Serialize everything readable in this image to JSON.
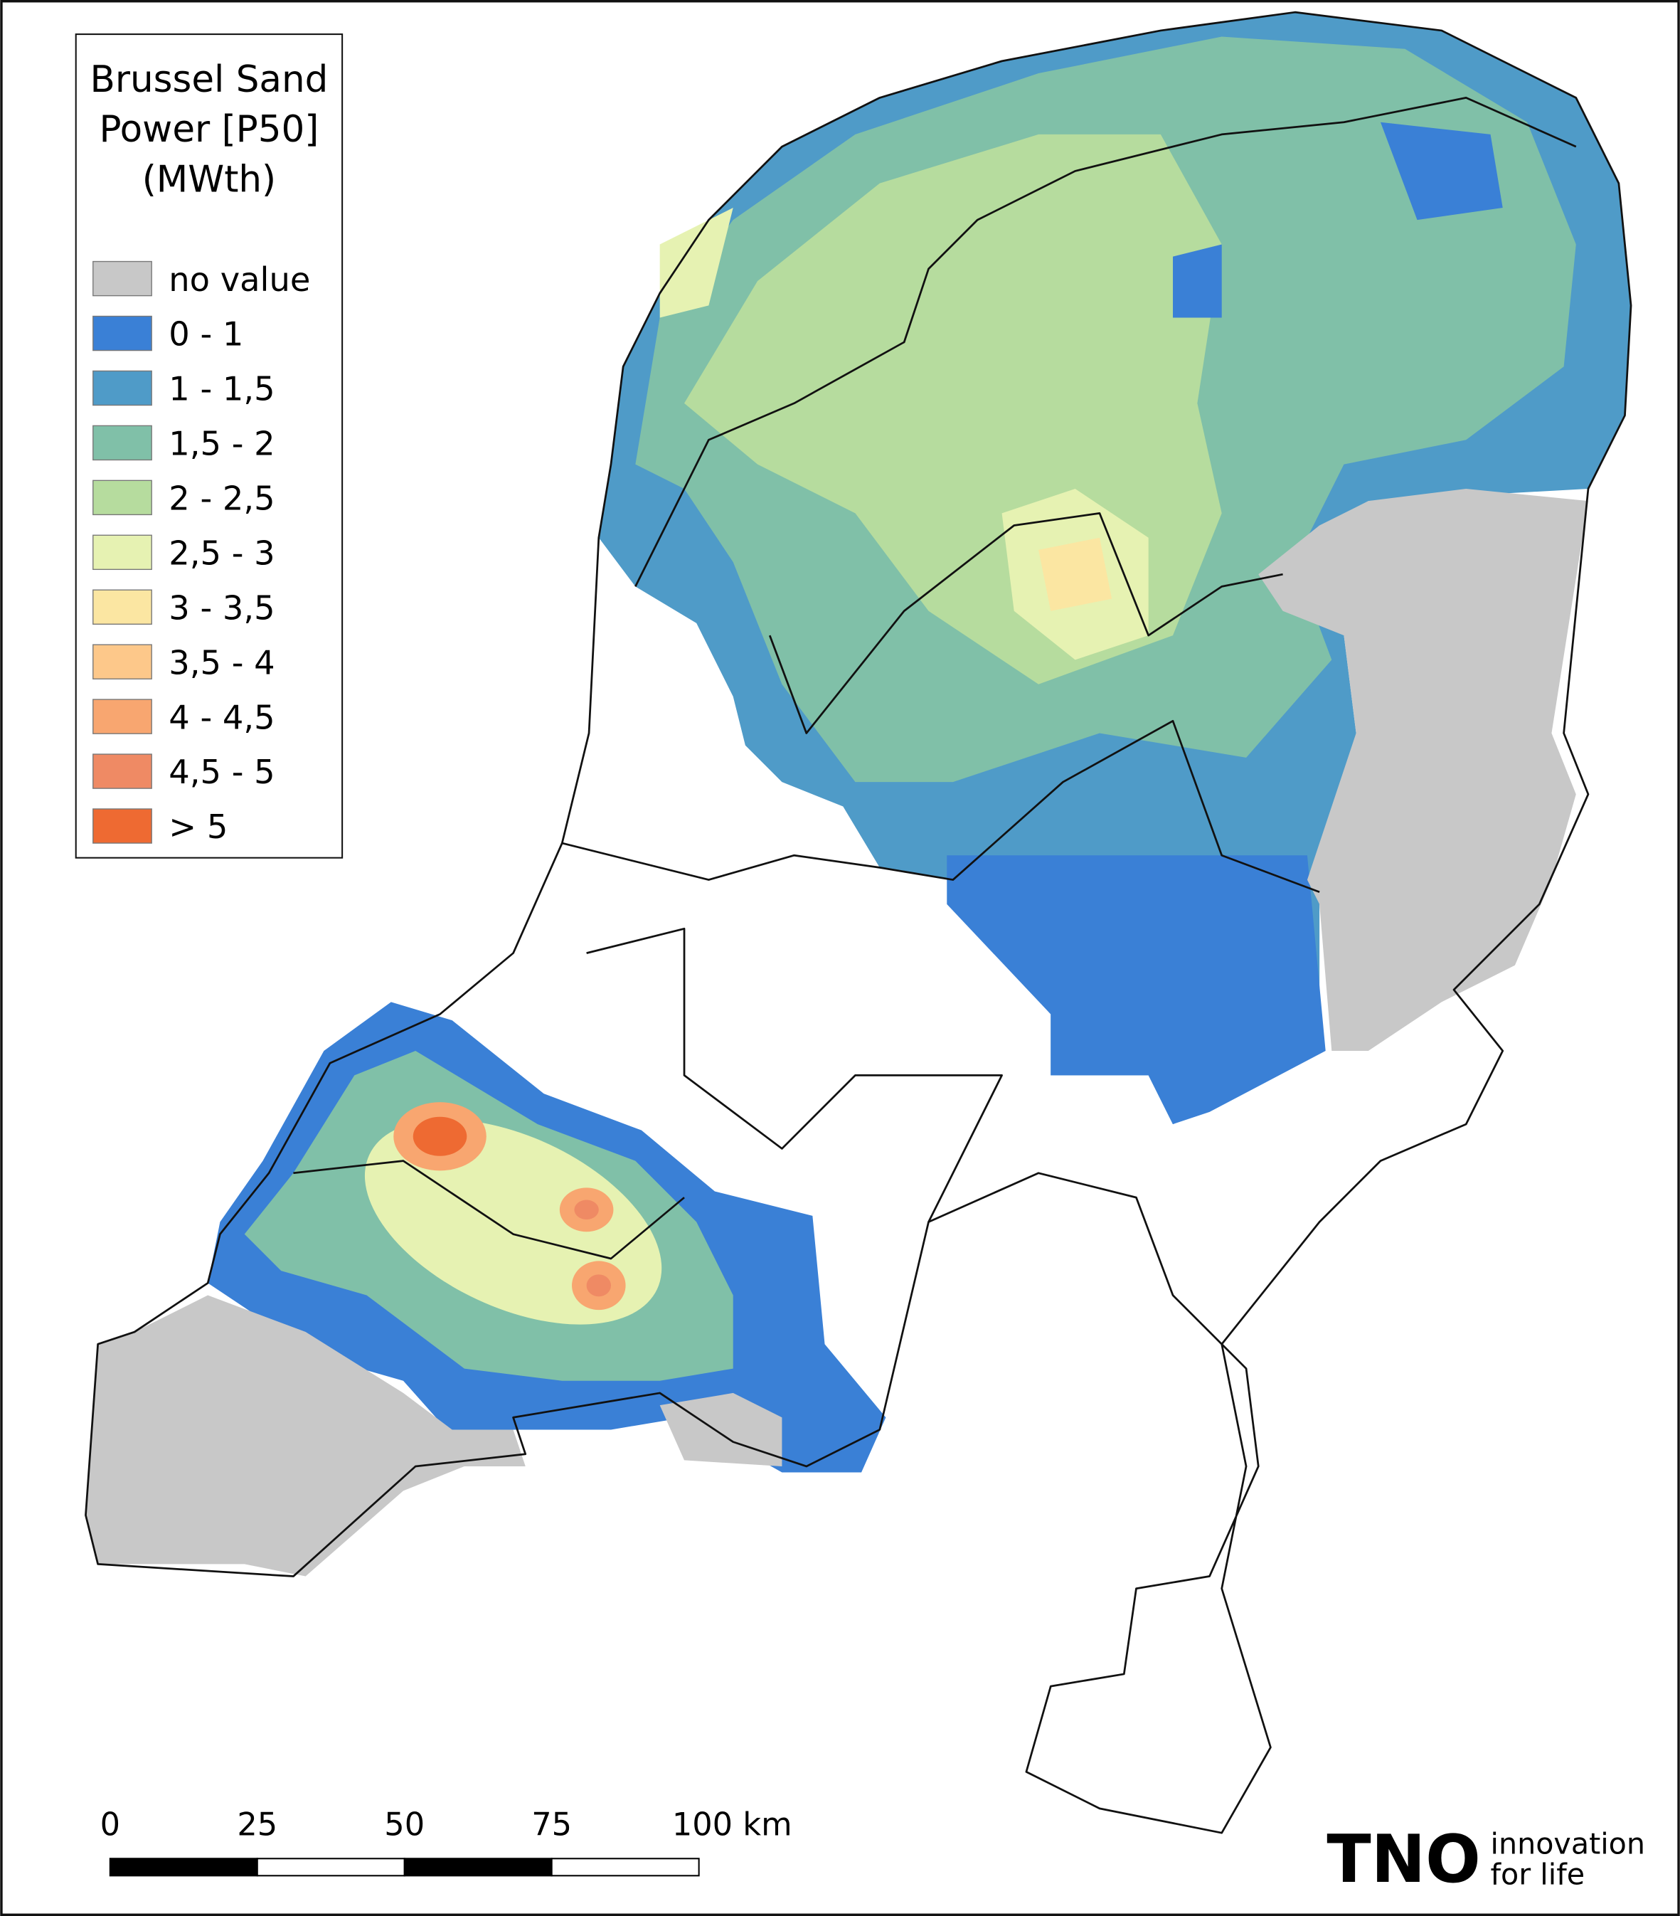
{
  "legend": {
    "title": [
      "Brussel Sand",
      "Power [P50]",
      "(MWth)"
    ],
    "items": [
      {
        "label": "no value",
        "color": "#c8c8c8"
      },
      {
        "label": "0 - 1",
        "color": "#3a80d6"
      },
      {
        "label": "1 - 1,5",
        "color": "#4f9bc8"
      },
      {
        "label": "1,5 - 2",
        "color": "#80c0a8"
      },
      {
        "label": "2 - 2,5",
        "color": "#b6dc9e"
      },
      {
        "label": "2,5 - 3",
        "color": "#e6f2b2"
      },
      {
        "label": "3 - 3,5",
        "color": "#fbe6a2"
      },
      {
        "label": "3,5 - 4",
        "color": "#fdc88a"
      },
      {
        "label": "4 - 4,5",
        "color": "#f8a670"
      },
      {
        "label": "4,5 - 5",
        "color": "#ef8a64"
      },
      {
        "label": "> 5",
        "color": "#ee6a32"
      }
    ]
  },
  "scale_bar": {
    "labels": [
      "0",
      "25",
      "50",
      "75",
      "100 km"
    ]
  },
  "logo": {
    "mark": "TNO",
    "tagline": [
      "innovation",
      "for life"
    ]
  }
}
